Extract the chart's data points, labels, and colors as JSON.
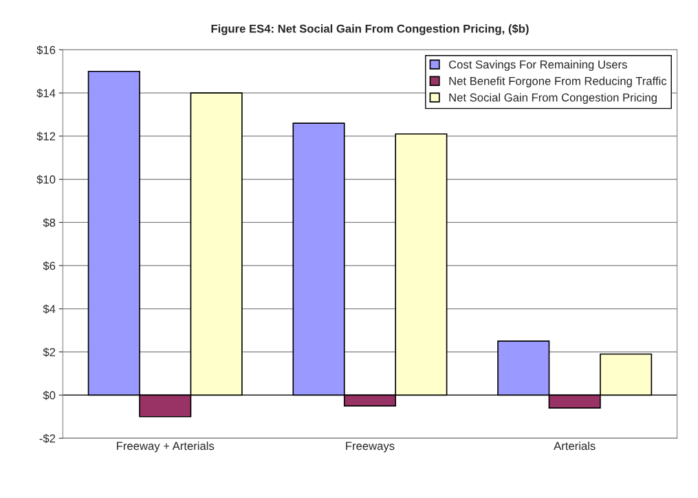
{
  "chart_data": {
    "type": "bar",
    "title": "Figure ES4: Net Social Gain From Congestion Pricing, ($b)",
    "categories": [
      "Freeway + Arterials",
      "Freeways",
      "Arterials"
    ],
    "series": [
      {
        "name": "Cost Savings For Remaining Users",
        "color": "#9999ff",
        "values": [
          15.0,
          12.6,
          2.5
        ]
      },
      {
        "name": "Net Benefit Forgone From Reducing Traffic",
        "color": "#993366",
        "values": [
          -1.0,
          -0.5,
          -0.6
        ]
      },
      {
        "name": "Net Social Gain From Congestion Pricing",
        "color": "#ffffcc",
        "values": [
          14.0,
          12.1,
          1.9
        ]
      }
    ],
    "ylim": [
      -2,
      16
    ],
    "yticks": [
      {
        "value": -2,
        "label": "-$2"
      },
      {
        "value": 0,
        "label": "$0"
      },
      {
        "value": 2,
        "label": "$2"
      },
      {
        "value": 4,
        "label": "$4"
      },
      {
        "value": 6,
        "label": "$6"
      },
      {
        "value": 8,
        "label": "$8"
      },
      {
        "value": 10,
        "label": "$10"
      },
      {
        "value": 12,
        "label": "$12"
      },
      {
        "value": 14,
        "label": "$14"
      },
      {
        "value": 16,
        "label": "$16"
      }
    ],
    "grid": "y",
    "legend": "top right"
  }
}
